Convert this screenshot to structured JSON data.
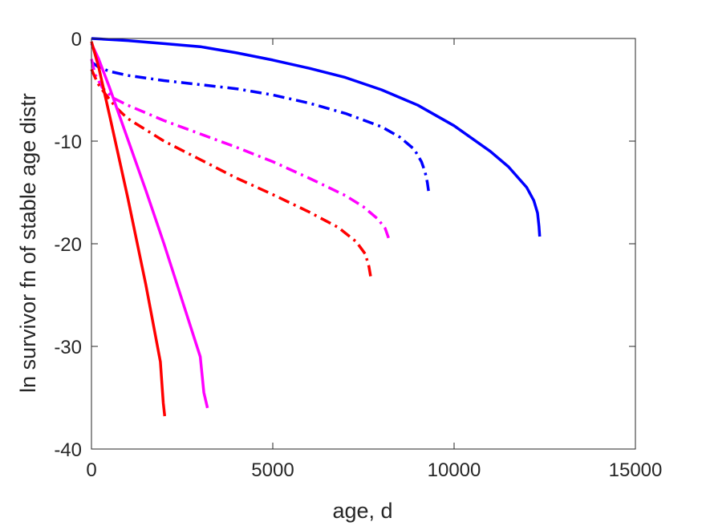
{
  "chart_data": {
    "type": "line",
    "xlabel": "age, d",
    "ylabel": "ln survivor fn of stable age distr",
    "xlim": [
      0,
      15000
    ],
    "ylim": [
      -40,
      0
    ],
    "x_ticks": [
      0,
      5000,
      10000,
      15000
    ],
    "x_tick_labels": [
      "0",
      "5000",
      "10000",
      "15000"
    ],
    "y_ticks": [
      0,
      -10,
      -20,
      -30,
      -40
    ],
    "y_tick_labels": [
      "0",
      "-10",
      "-20",
      "-30",
      "-40"
    ],
    "grid": false,
    "legend": false,
    "series": [
      {
        "color": "#0000ff",
        "style": "solid",
        "points": [
          [
            0,
            0
          ],
          [
            1000,
            -0.2
          ],
          [
            2000,
            -0.5
          ],
          [
            3000,
            -0.8
          ],
          [
            4000,
            -1.4
          ],
          [
            5000,
            -2.1
          ],
          [
            6000,
            -2.9
          ],
          [
            7000,
            -3.8
          ],
          [
            8000,
            -5.0
          ],
          [
            9000,
            -6.5
          ],
          [
            10000,
            -8.5
          ],
          [
            11000,
            -11.0
          ],
          [
            11500,
            -12.5
          ],
          [
            12000,
            -14.5
          ],
          [
            12200,
            -15.8
          ],
          [
            12300,
            -17.0
          ],
          [
            12340,
            -18.3
          ],
          [
            12360,
            -19.3
          ]
        ]
      },
      {
        "color": "#0000ff",
        "style": "dashdot",
        "points": [
          [
            0,
            -2.3
          ],
          [
            200,
            -2.8
          ],
          [
            500,
            -3.2
          ],
          [
            1000,
            -3.6
          ],
          [
            2000,
            -4.1
          ],
          [
            3000,
            -4.5
          ],
          [
            4000,
            -4.9
          ],
          [
            5000,
            -5.5
          ],
          [
            6000,
            -6.3
          ],
          [
            7000,
            -7.3
          ],
          [
            8000,
            -8.6
          ],
          [
            8500,
            -9.6
          ],
          [
            8900,
            -10.8
          ],
          [
            9100,
            -12.0
          ],
          [
            9200,
            -13.0
          ],
          [
            9260,
            -14.0
          ],
          [
            9300,
            -15.0
          ]
        ]
      },
      {
        "color": "#ff00ff",
        "style": "dashdot",
        "points": [
          [
            0,
            -2.0
          ],
          [
            100,
            -3.5
          ],
          [
            300,
            -4.8
          ],
          [
            600,
            -5.8
          ],
          [
            1000,
            -6.5
          ],
          [
            2000,
            -8.0
          ],
          [
            3000,
            -9.3
          ],
          [
            4000,
            -10.6
          ],
          [
            5000,
            -12.0
          ],
          [
            6000,
            -13.6
          ],
          [
            7000,
            -15.3
          ],
          [
            7500,
            -16.4
          ],
          [
            7900,
            -17.6
          ],
          [
            8100,
            -18.5
          ],
          [
            8200,
            -19.5
          ]
        ]
      },
      {
        "color": "#ff0000",
        "style": "dashdot",
        "points": [
          [
            0,
            -3.0
          ],
          [
            100,
            -3.8
          ],
          [
            200,
            -4.5
          ],
          [
            400,
            -5.5
          ],
          [
            700,
            -6.8
          ],
          [
            1000,
            -7.8
          ],
          [
            2000,
            -10.0
          ],
          [
            3000,
            -11.8
          ],
          [
            4000,
            -13.6
          ],
          [
            5000,
            -15.2
          ],
          [
            6000,
            -16.9
          ],
          [
            6800,
            -18.4
          ],
          [
            7300,
            -19.8
          ],
          [
            7550,
            -21.0
          ],
          [
            7650,
            -22.2
          ],
          [
            7700,
            -23.2
          ]
        ]
      },
      {
        "color": "#ff00ff",
        "style": "solid",
        "points": [
          [
            0,
            -0.5
          ],
          [
            200,
            -2.0
          ],
          [
            500,
            -4.8
          ],
          [
            1000,
            -9.8
          ],
          [
            1500,
            -14.8
          ],
          [
            2000,
            -20.0
          ],
          [
            2500,
            -25.5
          ],
          [
            3000,
            -31.0
          ],
          [
            3100,
            -34.5
          ],
          [
            3200,
            -36.0
          ]
        ]
      },
      {
        "color": "#ff0000",
        "style": "solid",
        "points": [
          [
            0,
            -0.3
          ],
          [
            200,
            -2.8
          ],
          [
            500,
            -7.5
          ],
          [
            1000,
            -15.5
          ],
          [
            1500,
            -24.0
          ],
          [
            1900,
            -31.5
          ],
          [
            1980,
            -35.5
          ],
          [
            2020,
            -36.8
          ]
        ]
      }
    ]
  }
}
